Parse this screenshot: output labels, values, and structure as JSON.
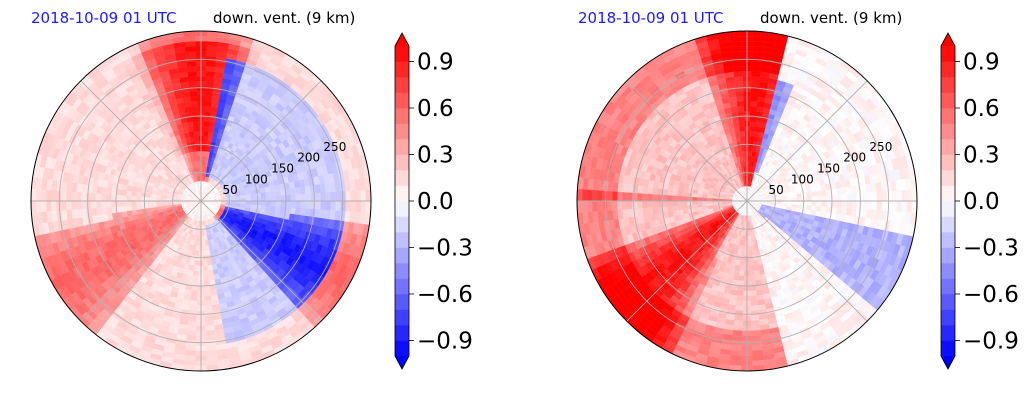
{
  "chart_data": [
    {
      "type": "heatmap",
      "projection": "polar",
      "title_left": "2018-10-09 01 UTC",
      "title_right": "down. vent. (9 km)",
      "radial_ticks": [
        50,
        100,
        150,
        200,
        250
      ],
      "radial_max": 300,
      "grid": true,
      "colormap": "bwr",
      "colorbar": {
        "ticks": [
          0.9,
          0.6,
          0.3,
          0.0,
          -0.3,
          -0.6,
          -0.9
        ],
        "tick_labels": [
          "0.9",
          "0.6",
          "0.3",
          "0.0",
          "−0.3",
          "−0.6",
          "−0.9"
        ],
        "range": [
          -1.0,
          1.0
        ],
        "extend": "both",
        "levels": 20,
        "placement": "right"
      },
      "field_pattern": "positive (red) over western half and north, negative (blue) bands in eastern half near center"
    },
    {
      "type": "heatmap",
      "projection": "polar",
      "title_left": "2018-10-09 01 UTC",
      "title_right": "down. vent. (9 km)",
      "radial_ticks": [
        50,
        100,
        150,
        200,
        250
      ],
      "radial_max": 300,
      "grid": true,
      "colormap": "bwr",
      "colorbar": {
        "ticks": [
          0.9,
          0.6,
          0.3,
          0.0,
          -0.3,
          -0.6,
          -0.9
        ],
        "tick_labels": [
          "0.9",
          "0.6",
          "0.3",
          "0.0",
          "−0.3",
          "−0.6",
          "−0.9"
        ],
        "range": [
          -1.0,
          1.0
        ],
        "extend": "both",
        "levels": 20,
        "placement": "right"
      },
      "field_pattern": "strong positive (red) spiral arcs on western side, negative (blue) bands to the northeast and east"
    }
  ]
}
